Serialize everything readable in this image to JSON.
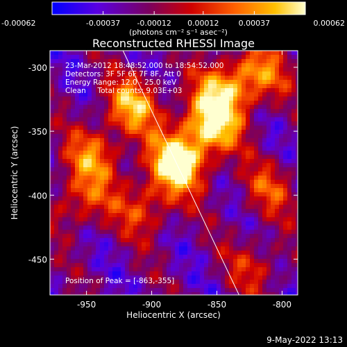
{
  "chart_data": {
    "type": "heatmap",
    "title": "Reconstructed RHESSI Image",
    "xlabel": "Heliocentric X (arcsec)",
    "ylabel": "Heliocentric Y (arcsec)",
    "x_range": [
      -978,
      -788
    ],
    "y_range": [
      -478,
      -287
    ],
    "x_ticks": [
      -950,
      -900,
      -850,
      -800
    ],
    "y_ticks": [
      -300,
      -350,
      -400,
      -450
    ],
    "x_tick_labels": [
      "-950",
      "-900",
      "-850",
      "-800"
    ],
    "y_tick_labels": [
      "-300",
      "-350",
      "-400",
      "-450"
    ],
    "colorbar": {
      "ticks": [
        -0.00062,
        -0.00037,
        -0.00012,
        0.00012,
        0.00037,
        0.00062
      ],
      "tick_labels": [
        "-0.00062",
        "-0.00037",
        "-0.00012",
        "0.00012",
        "0.00037",
        "0.00062"
      ],
      "units_label": "(photons cm⁻² s⁻¹ asec⁻²)",
      "colormap": [
        "#0000ff",
        "#6f00c8",
        "#c00000",
        "#ff5000",
        "#ffb000",
        "#ffffc0"
      ]
    },
    "annotations": [
      "23-Mar-2012 18:48:52.000 to 18:54:52.000",
      "Detectors: 3F 5F 6F 7F 8F, Att 0",
      "Energy Range: 12.0 - 25.0 keV",
      "Clean     Total counts: 9.03E+03"
    ],
    "peak_label": "Position of Peak = [-863,-355]",
    "peak": [
      -863,
      -355
    ],
    "limb_line": {
      "from": [
        -922,
        -287
      ],
      "to": [
        -833,
        -478
      ]
    },
    "hot_spots": [
      {
        "x": -880,
        "y": -375,
        "intensity": 1.0
      },
      {
        "x": -855,
        "y": -345,
        "intensity": 0.85
      },
      {
        "x": -845,
        "y": -318,
        "intensity": 0.6
      },
      {
        "x": -915,
        "y": -330,
        "intensity": 0.7
      },
      {
        "x": -945,
        "y": -370,
        "intensity": 0.55
      },
      {
        "x": -955,
        "y": -405,
        "intensity": 0.45
      },
      {
        "x": -905,
        "y": -410,
        "intensity": 0.45
      },
      {
        "x": -818,
        "y": -305,
        "intensity": 0.55
      },
      {
        "x": -810,
        "y": -395,
        "intensity": 0.4
      },
      {
        "x": -820,
        "y": -455,
        "intensity": 0.35
      }
    ]
  },
  "footer": {
    "timestamp": "9-May-2022 13:13"
  }
}
